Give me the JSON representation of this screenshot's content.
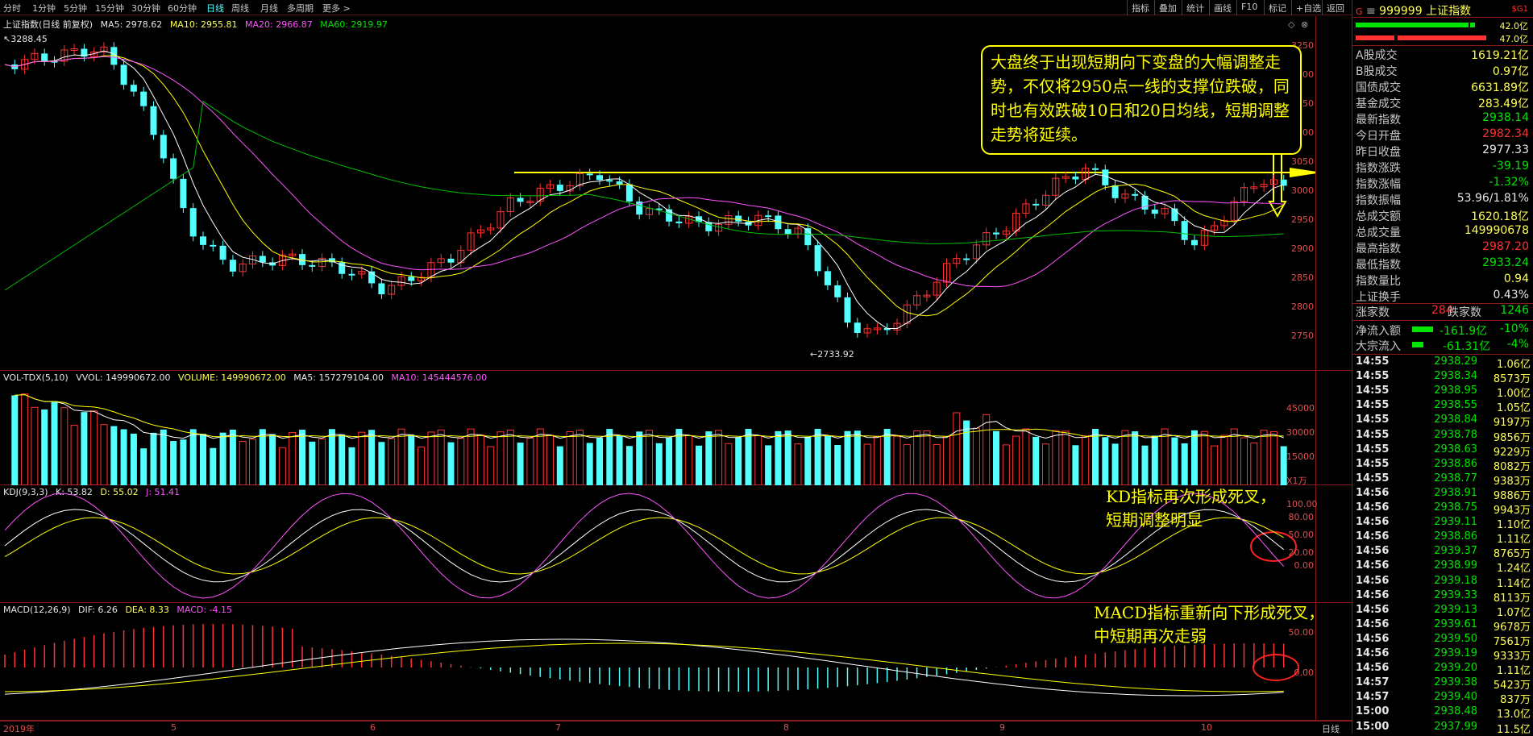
{
  "toolbar": {
    "period_tabs": [
      "分时",
      "1分钟",
      "5分钟",
      "15分钟",
      "30分钟",
      "60分钟",
      "日线",
      "周线",
      "月线",
      "多周期",
      "更多 >"
    ],
    "active_tab": "日线",
    "buttons": [
      "指标",
      "叠加",
      "统计",
      "画线",
      "F10",
      "标记",
      "+自选",
      "返回"
    ]
  },
  "kline_pane": {
    "title": "上证指数(日线 前复权)",
    "ma5": "MA5: 2978.62",
    "ma10": "MA10: 2955.81",
    "ma20": "MA20: 2966.87",
    "ma60": "MA60: 2919.97",
    "high_marker": "3288.45",
    "low_marker": "2733.92",
    "yticks": [
      "3250",
      "3200",
      "3150",
      "3100",
      "3050",
      "3000",
      "2950",
      "2900",
      "2850",
      "2800",
      "2750"
    ],
    "colors": {
      "ma5": "#ffffff",
      "ma10": "#ffff00",
      "ma20": "#ff54ff",
      "ma60": "#00c000",
      "up": "#ff3232",
      "down": "#54ffff"
    }
  },
  "volume_pane": {
    "title": "VOL-TDX(5,10)",
    "vvol": "VVOL: 149990672.00",
    "volume": "VOLUME: 149990672.00",
    "ma5": "MA5: 157279104.00",
    "ma10": "MA10: 145444576.00",
    "yticks": [
      "45000",
      "30000",
      "15000"
    ],
    "unit": "X1万"
  },
  "kdj_pane": {
    "title": "KDJ(9,3,3)",
    "k": "K: 53.82",
    "d": "D: 55.02",
    "j": "J: 51.41",
    "yticks": [
      "100.00",
      "80.00",
      "50.00",
      "20.00",
      "0.00"
    ]
  },
  "macd_pane": {
    "title": "MACD(12,26,9)",
    "dif": "DIF: 6.26",
    "dea": "DEA: 8.33",
    "macd": "MACD: -4.15",
    "yticks": [
      "50.00",
      "0.00"
    ]
  },
  "x_axis": {
    "labels": [
      "2019年",
      "5",
      "6",
      "7",
      "8",
      "9",
      "10"
    ],
    "period_label": "日线"
  },
  "annotations": {
    "callout": "大盘终于出现短期向下变盘的大幅调整走势，不仅将2950点一线的支撑位跌破，同时也有效跌破10日和20日均线，短期调整走势将延续。",
    "kd_line1": "KD指标再次形成死叉，",
    "kd_line2": "短期调整明显",
    "macd_line1": "MACD指标重新向下形成死叉，",
    "macd_line2": "中短期再次走弱"
  },
  "quote_panel": {
    "code_prefix": "G",
    "code": "999999",
    "name": "上证指数",
    "tag": "$G1",
    "bar_top_value": "42.0亿",
    "bar_bottom_value": "47.0亿",
    "stats": [
      {
        "label": "A股成交",
        "value": "1619.21亿",
        "color": "#ffff54"
      },
      {
        "label": "B股成交",
        "value": "0.97亿",
        "color": "#ffff54"
      },
      {
        "label": "国债成交",
        "value": "6631.89亿",
        "color": "#ffff54"
      },
      {
        "label": "基金成交",
        "value": "283.49亿",
        "color": "#ffff54"
      },
      {
        "label": "最新指数",
        "value": "2938.14",
        "color": "#00e600"
      },
      {
        "label": "今日开盘",
        "value": "2982.34",
        "color": "#ff3232"
      },
      {
        "label": "昨日收盘",
        "value": "2977.33",
        "color": "#e6e6e6"
      },
      {
        "label": "指数涨跌",
        "value": "-39.19",
        "color": "#00e600"
      },
      {
        "label": "指数涨幅",
        "value": "-1.32%",
        "color": "#00e600"
      },
      {
        "label": "指数振幅",
        "value": "53.96/1.81%",
        "color": "#e6e6e6"
      },
      {
        "label": "总成交额",
        "value": "1620.18亿",
        "color": "#ffff54"
      },
      {
        "label": "总成交量",
        "value": "149990678",
        "color": "#ffff54"
      },
      {
        "label": "最高指数",
        "value": "2987.20",
        "color": "#ff3232"
      },
      {
        "label": "最低指数",
        "value": "2933.24",
        "color": "#00e600"
      },
      {
        "label": "指数量比",
        "value": "0.94",
        "color": "#ffff54"
      },
      {
        "label": "上证换手",
        "value": "0.43%",
        "color": "#e6e6e6"
      }
    ],
    "up_label": "涨家数",
    "up_value": "284",
    "down_label": "跌家数",
    "down_value": "1246",
    "netflow_label": "净流入额",
    "netflow_value": "-161.9亿",
    "netflow_pct": "-10%",
    "block_label": "大宗流入",
    "block_value": "-61.31亿",
    "block_pct": "-4%",
    "ticks": [
      {
        "time": "14:55",
        "price": "2938.29",
        "vol": "1.06亿",
        "color": "#00e600"
      },
      {
        "time": "14:55",
        "price": "2938.34",
        "vol": "8573万",
        "color": "#00e600"
      },
      {
        "time": "14:55",
        "price": "2938.95",
        "vol": "1.00亿",
        "color": "#00e600"
      },
      {
        "time": "14:55",
        "price": "2938.55",
        "vol": "1.05亿",
        "color": "#00e600"
      },
      {
        "time": "14:55",
        "price": "2938.84",
        "vol": "9197万",
        "color": "#00e600"
      },
      {
        "time": "14:55",
        "price": "2938.78",
        "vol": "9856万",
        "color": "#00e600"
      },
      {
        "time": "14:55",
        "price": "2938.63",
        "vol": "9229万",
        "color": "#00e600"
      },
      {
        "time": "14:55",
        "price": "2938.86",
        "vol": "8082万",
        "color": "#00e600"
      },
      {
        "time": "14:55",
        "price": "2938.77",
        "vol": "9383万",
        "color": "#00e600"
      },
      {
        "time": "14:56",
        "price": "2938.91",
        "vol": "9886万",
        "color": "#00e600"
      },
      {
        "time": "14:56",
        "price": "2938.75",
        "vol": "9943万",
        "color": "#00e600"
      },
      {
        "time": "14:56",
        "price": "2939.11",
        "vol": "1.10亿",
        "color": "#00e600"
      },
      {
        "time": "14:56",
        "price": "2938.86",
        "vol": "1.11亿",
        "color": "#00e600"
      },
      {
        "time": "14:56",
        "price": "2939.37",
        "vol": "8765万",
        "color": "#00e600"
      },
      {
        "time": "14:56",
        "price": "2938.99",
        "vol": "1.24亿",
        "color": "#00e600"
      },
      {
        "time": "14:56",
        "price": "2939.18",
        "vol": "1.14亿",
        "color": "#00e600"
      },
      {
        "time": "14:56",
        "price": "2939.33",
        "vol": "8113万",
        "color": "#00e600"
      },
      {
        "time": "14:56",
        "price": "2939.13",
        "vol": "1.07亿",
        "color": "#00e600"
      },
      {
        "time": "14:56",
        "price": "2939.61",
        "vol": "9678万",
        "color": "#00e600"
      },
      {
        "time": "14:56",
        "price": "2939.50",
        "vol": "7561万",
        "color": "#00e600"
      },
      {
        "time": "14:56",
        "price": "2939.19",
        "vol": "9333万",
        "color": "#00e600"
      },
      {
        "time": "14:56",
        "price": "2939.20",
        "vol": "1.11亿",
        "color": "#00e600"
      },
      {
        "time": "14:57",
        "price": "2939.38",
        "vol": "5423万",
        "color": "#00e600"
      },
      {
        "time": "14:57",
        "price": "2939.40",
        "vol": "837万",
        "color": "#00e600"
      },
      {
        "time": "15:00",
        "price": "2938.48",
        "vol": "13.0亿",
        "color": "#00e600"
      },
      {
        "time": "15:00",
        "price": "2937.99",
        "vol": "11.5亿",
        "color": "#00e600"
      }
    ]
  }
}
